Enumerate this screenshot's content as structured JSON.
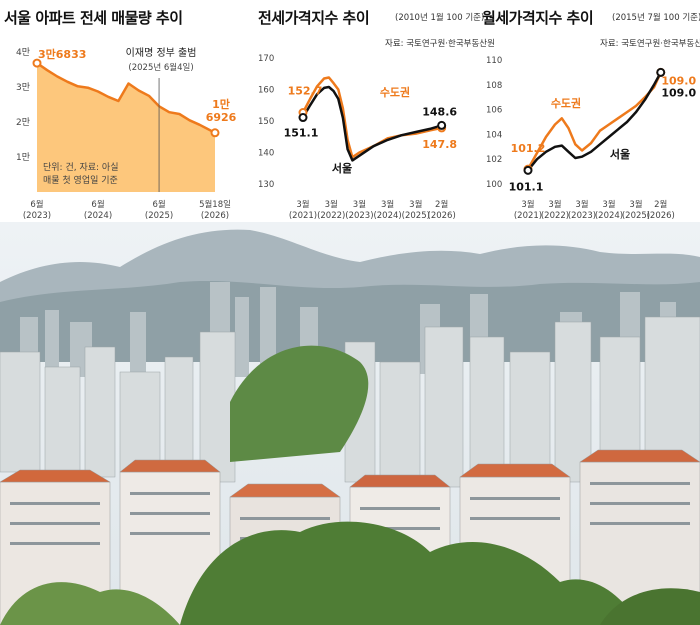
{
  "colors": {
    "orange": "#ee7a1c",
    "black": "#111111",
    "area": "#fdc77c"
  },
  "chart_data": [
    {
      "type": "area",
      "title": "서울 아파트 전세 매물량 추이",
      "y_ticks": [
        {
          "value": 40000,
          "label": "4만"
        },
        {
          "value": 30000,
          "label": "3만"
        },
        {
          "value": 20000,
          "label": "2만"
        },
        {
          "value": 10000,
          "label": "1만"
        }
      ],
      "x_ticks": [
        {
          "label": "6월",
          "sub": "(2023)",
          "x": 0
        },
        {
          "label": "6월",
          "sub": "(2024)",
          "x": 12
        },
        {
          "label": "6월",
          "sub": "(2025)",
          "x": 24
        },
        {
          "label": "5월18일",
          "sub": "(2026)",
          "x": 35
        }
      ],
      "ylim": [
        0,
        40000
      ],
      "xlim": [
        0,
        35
      ],
      "x": [
        0,
        2,
        4,
        6,
        8,
        10,
        12,
        14,
        16,
        18,
        20,
        22,
        24,
        26,
        28,
        30,
        32,
        35
      ],
      "values": [
        36833,
        34800,
        33000,
        31500,
        30200,
        29800,
        28700,
        27200,
        26000,
        31000,
        29000,
        27500,
        24500,
        22800,
        22300,
        20500,
        19200,
        16926
      ],
      "start_label": "3만6833",
      "end_label_line1": "1만",
      "end_label_line2": "6926",
      "event_label": "이재명 정부 출범",
      "event_date": "(2025년 6월4일)",
      "event_x": 24,
      "note_line1": "단위: 건, 자료: 아실",
      "note_line2": "매물 첫 영업일 기준"
    },
    {
      "type": "line",
      "title": "전세가격지수 추이",
      "subtitle": "(2010년 1월 100 기준)",
      "source": "자료: 국토연구원·한국부동산원",
      "ylim": [
        130,
        170
      ],
      "y_ticks": [
        170,
        160,
        150,
        140,
        130
      ],
      "xlim": [
        0,
        60
      ],
      "x_ticks": [
        {
          "label": "3월",
          "sub": "(2021)",
          "x": 0
        },
        {
          "label": "3월",
          "sub": "(2022)",
          "x": 12
        },
        {
          "label": "3월",
          "sub": "(2023)",
          "x": 24
        },
        {
          "label": "3월",
          "sub": "(2024)",
          "x": 36
        },
        {
          "label": "3월",
          "sub": "(2025)",
          "x": 48
        },
        {
          "label": "2월",
          "sub": "(2026)",
          "x": 59
        }
      ],
      "series": [
        {
          "name": "수도권",
          "color": "#ee7a1c",
          "x": [
            0,
            3,
            6,
            9,
            11,
            13,
            15,
            17,
            19,
            21,
            24,
            30,
            36,
            42,
            48,
            54,
            59
          ],
          "values": [
            152.7,
            157,
            161,
            163.5,
            163.8,
            162,
            160,
            154,
            144,
            138.5,
            140,
            142,
            144.5,
            145.5,
            146,
            147,
            147.8
          ],
          "start_label": "152.7",
          "end_label": "147.8"
        },
        {
          "name": "서울",
          "color": "#111111",
          "x": [
            0,
            3,
            6,
            9,
            11,
            13,
            15,
            17,
            19,
            21,
            24,
            30,
            36,
            42,
            48,
            54,
            59
          ],
          "values": [
            151.1,
            155,
            158.5,
            160.5,
            160.8,
            159.5,
            157,
            151,
            141,
            137.5,
            139,
            142,
            144,
            145.5,
            146.5,
            147.5,
            148.6
          ],
          "start_label": "151.1",
          "end_label": "148.6"
        }
      ]
    },
    {
      "type": "line",
      "title": "월세가격지수 추이",
      "subtitle": "(2015년 7월 100 기준)",
      "source": "자료: 국토연구원·한국부동산원",
      "ylim": [
        100,
        110
      ],
      "y_ticks": [
        110,
        108,
        106,
        104,
        102,
        100
      ],
      "xlim": [
        0,
        60
      ],
      "x_ticks": [
        {
          "label": "3월",
          "sub": "(2021)",
          "x": 0
        },
        {
          "label": "3월",
          "sub": "(2022)",
          "x": 12
        },
        {
          "label": "3월",
          "sub": "(2023)",
          "x": 24
        },
        {
          "label": "3월",
          "sub": "(2024)",
          "x": 36
        },
        {
          "label": "3월",
          "sub": "(2025)",
          "x": 48
        },
        {
          "label": "2월",
          "sub": "(2026)",
          "x": 59
        }
      ],
      "series": [
        {
          "name": "수도권",
          "color": "#ee7a1c",
          "x": [
            0,
            4,
            8,
            12,
            15,
            18,
            21,
            24,
            28,
            32,
            36,
            40,
            44,
            48,
            52,
            56,
            59
          ],
          "values": [
            101.2,
            102.5,
            103.8,
            104.8,
            105.3,
            104.5,
            103.2,
            102.7,
            103.3,
            104.3,
            104.8,
            105.3,
            105.8,
            106.3,
            107.0,
            107.8,
            109.0
          ],
          "start_label": "101.2",
          "end_label": "109.0"
        },
        {
          "name": "서울",
          "color": "#111111",
          "x": [
            0,
            4,
            8,
            12,
            15,
            18,
            21,
            24,
            28,
            32,
            36,
            40,
            44,
            48,
            52,
            56,
            59
          ],
          "values": [
            101.1,
            102.0,
            102.6,
            103.0,
            103.1,
            102.6,
            102.1,
            102.2,
            102.6,
            103.2,
            103.8,
            104.4,
            105.0,
            105.8,
            106.8,
            108.0,
            109.0
          ],
          "start_label": "101.1",
          "end_label": "109.0"
        }
      ]
    }
  ],
  "panels": {
    "p1": {
      "title": "서울 아파트 전세 매물량 추이"
    },
    "p2": {
      "title": "전세가격지수 추이",
      "subtitle": "(2010년 1월 100 기준)",
      "source": "자료: 국토연구원·한국부동산원"
    },
    "p3": {
      "title": "월세가격지수 추이",
      "subtitle": "(2015년 7월 100 기준)",
      "source": "자료: 국토연구원·한국부동산원"
    }
  },
  "photo": {
    "description_icon": "seoul-apartment-cityscape-photo"
  }
}
